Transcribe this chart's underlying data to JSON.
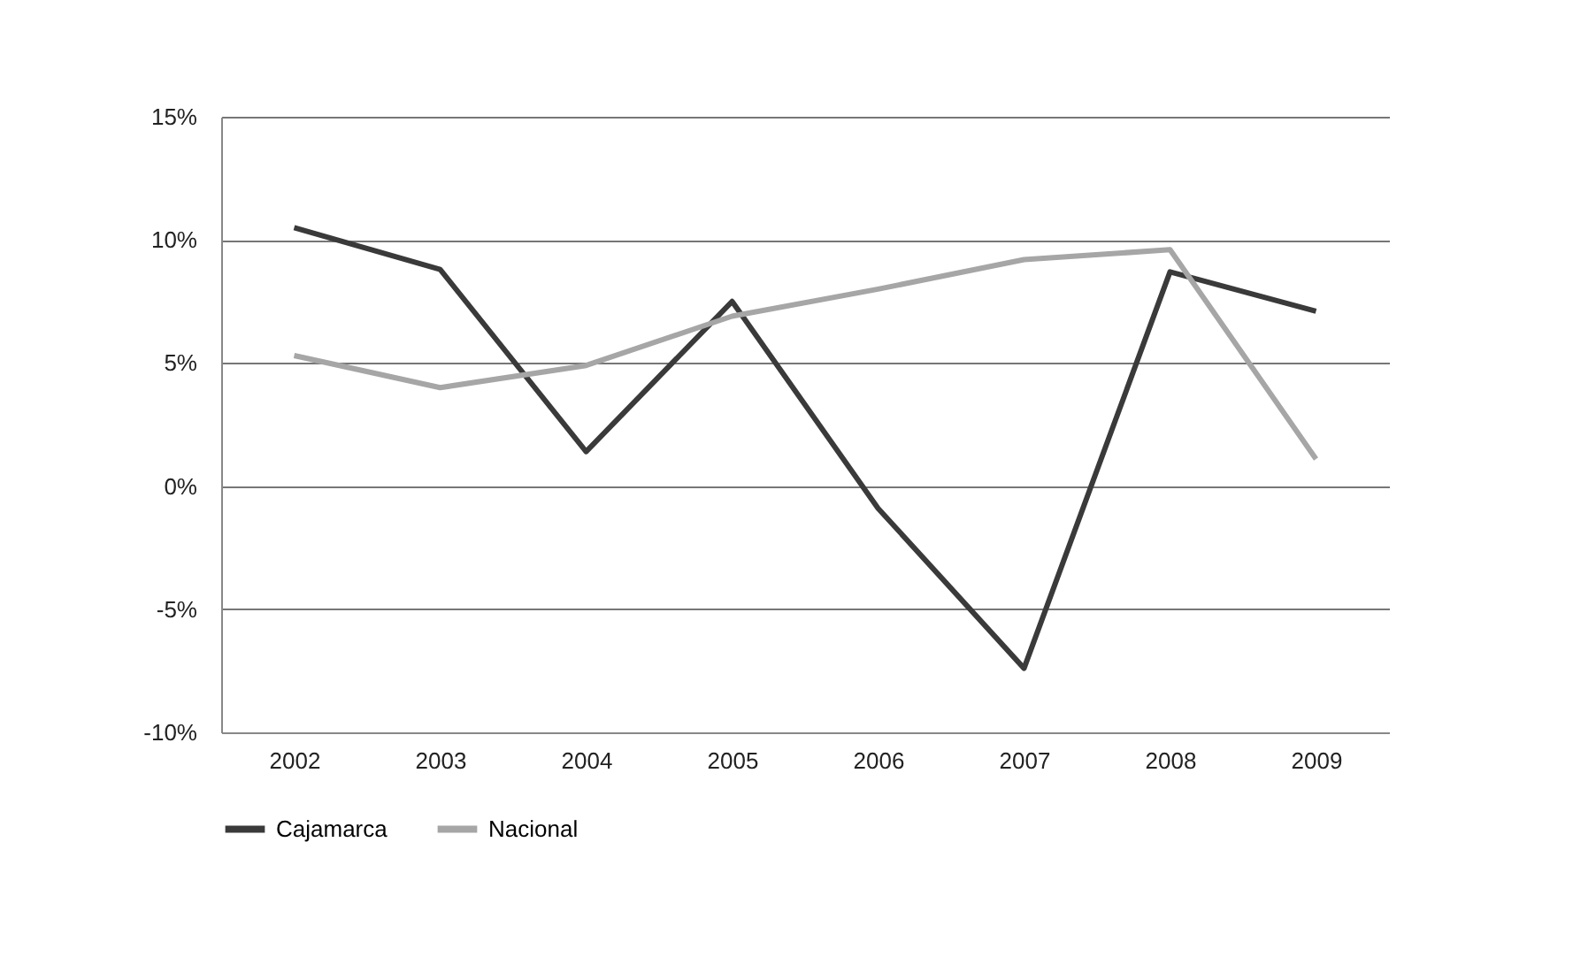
{
  "chart_data": {
    "type": "line",
    "categories": [
      "2002",
      "2003",
      "2004",
      "2005",
      "2006",
      "2007",
      "2008",
      "2009"
    ],
    "series": [
      {
        "name": "Cajamarca",
        "color": "#3a3a3a",
        "values": [
          10.5,
          8.8,
          1.4,
          7.5,
          -0.9,
          -7.4,
          8.7,
          7.1
        ]
      },
      {
        "name": "Nacional",
        "color": "#a6a6a6",
        "values": [
          5.3,
          4.0,
          4.9,
          6.9,
          8.0,
          9.2,
          9.6,
          1.1
        ]
      }
    ],
    "ylim": [
      -10,
      15
    ],
    "yticks": [
      {
        "value": -10,
        "label": "-10%"
      },
      {
        "value": -5,
        "label": "-5%"
      },
      {
        "value": 0,
        "label": "0%"
      },
      {
        "value": 5,
        "label": "5%"
      },
      {
        "value": 10,
        "label": "10%"
      },
      {
        "value": 15,
        "label": "15%"
      }
    ],
    "grid": "y",
    "legend": "bottom",
    "marker": "none",
    "line_style": "solid"
  }
}
